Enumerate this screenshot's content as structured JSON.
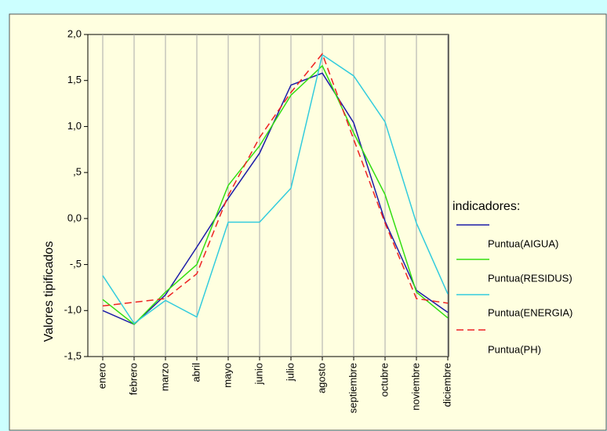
{
  "chart_data": {
    "type": "line",
    "y_label": "Valores tipificados",
    "legend_title": "indicadores:",
    "categories": [
      "enero",
      "febrero",
      "marzo",
      "abril",
      "mayo",
      "junio",
      "julio",
      "agosto",
      "septiembre",
      "octubre",
      "noviembre",
      "diciembre"
    ],
    "series": [
      {
        "name": "Puntua(AIGUA)",
        "color": "#1c1ca8",
        "dash": false,
        "values": [
          -1.0,
          -1.15,
          -0.83,
          -0.31,
          0.22,
          0.71,
          1.45,
          1.58,
          1.04,
          -0.03,
          -0.78,
          -1.02
        ]
      },
      {
        "name": "Puntua(RESIDUS)",
        "color": "#33dd11",
        "dash": false,
        "values": [
          -0.88,
          -1.15,
          -0.8,
          -0.5,
          0.36,
          0.79,
          1.34,
          1.66,
          0.93,
          0.26,
          -0.8,
          -1.08
        ]
      },
      {
        "name": "Puntua(ENERGIA)",
        "color": "#33ccdd",
        "dash": false,
        "values": [
          -0.62,
          -1.14,
          -0.89,
          -1.07,
          -0.04,
          -0.04,
          0.33,
          1.78,
          1.55,
          1.05,
          -0.05,
          -0.82
        ]
      },
      {
        "name": "Puntua(PH)",
        "color": "#ee2222",
        "dash": true,
        "values": [
          -0.95,
          -0.91,
          -0.87,
          -0.6,
          0.25,
          0.88,
          1.37,
          1.79,
          0.86,
          -0.05,
          -0.87,
          -0.92
        ]
      }
    ],
    "ylim": [
      -1.5,
      2.0
    ],
    "yticks": [
      {
        "value": -1.5,
        "label": "-1,5"
      },
      {
        "value": -1.0,
        "label": "-1,0"
      },
      {
        "value": -0.5,
        "label": "-,5"
      },
      {
        "value": 0.0,
        "label": "0,0"
      },
      {
        "value": 0.5,
        "label": ",5"
      },
      {
        "value": 1.0,
        "label": "1,0"
      },
      {
        "value": 1.5,
        "label": "1,5"
      },
      {
        "value": 2.0,
        "label": "2,0"
      }
    ],
    "grid": true
  }
}
